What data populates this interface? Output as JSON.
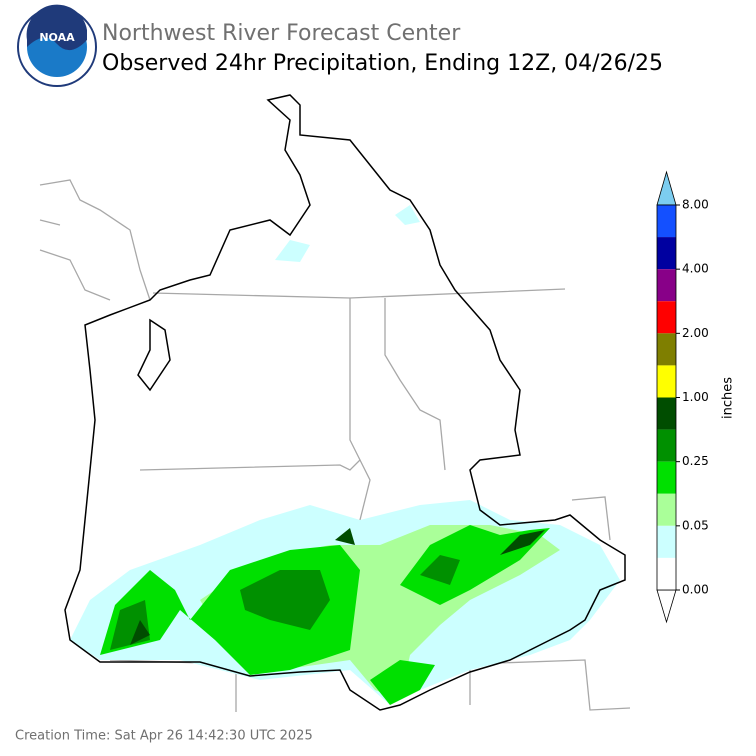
{
  "header": {
    "agency": "Northwest River Forecast Center",
    "title": "Observed 24hr Precipitation, Ending 12Z, 04/26/25",
    "logo_text": "NOAA"
  },
  "colorbar": {
    "label": "inches",
    "ticks": [
      "8.00",
      "4.00",
      "2.00",
      "1.00",
      "0.25",
      "0.05",
      "0.00"
    ],
    "colors": [
      "#1450ff",
      "#0000a0",
      "#880088",
      "#ff0000",
      "#7f7f00",
      "#ffff00",
      "#004d00",
      "#009000",
      "#00e000",
      "#aaff99",
      "#ccffff",
      "#ffffff"
    ],
    "over_color": "#7ccdf0",
    "under_color": "#ffffff"
  },
  "footer": {
    "creation_time": "Creation Time: Sat Apr 26 14:42:30 UTC 2025"
  }
}
